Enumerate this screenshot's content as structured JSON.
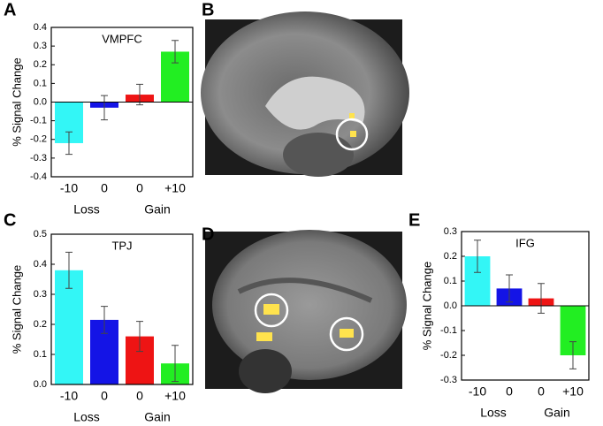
{
  "panel_labels": [
    "A",
    "B",
    "C",
    "D",
    "E"
  ],
  "chart_data": [
    {
      "type": "bar",
      "title": "VMPFC",
      "ylabel": "% Signal Change",
      "categories": [
        "-10",
        "0",
        "0",
        "+10"
      ],
      "category_groups": [
        "Loss",
        "Gain"
      ],
      "values": [
        -0.22,
        -0.03,
        0.04,
        0.27
      ],
      "errors": [
        0.06,
        0.065,
        0.055,
        0.06
      ],
      "colors": [
        "#33f6f6",
        "#1414e6",
        "#ee1414",
        "#22ee22"
      ],
      "ylim": [
        -0.4,
        0.4
      ],
      "yticks": [
        -0.4,
        -0.3,
        -0.2,
        -0.1,
        {
          "value": 0,
          "label": "0.0"
        },
        0.1,
        0.2,
        0.3,
        0.4
      ]
    },
    {
      "type": "bar",
      "title": "TPJ",
      "ylabel": "% Signal Change",
      "categories": [
        "-10",
        "0",
        "0",
        "+10"
      ],
      "category_groups": [
        "Loss",
        "Gain"
      ],
      "values": [
        0.38,
        0.215,
        0.16,
        0.07
      ],
      "errors": [
        0.06,
        0.045,
        0.05,
        0.06
      ],
      "colors": [
        "#33f6f6",
        "#1414e6",
        "#ee1414",
        "#22ee22"
      ],
      "ylim": [
        0,
        0.5
      ],
      "yticks": [
        {
          "value": 0,
          "label": "0.0"
        },
        0.1,
        0.2,
        0.3,
        0.4,
        0.5
      ]
    },
    {
      "type": "bar",
      "title": "IFG",
      "ylabel": "% Signal Change",
      "categories": [
        "-10",
        "0",
        "0",
        "+10"
      ],
      "category_groups": [
        "Loss",
        "Gain"
      ],
      "values": [
        0.2,
        0.07,
        0.03,
        -0.2
      ],
      "errors": [
        0.065,
        0.055,
        0.06,
        0.055
      ],
      "colors": [
        "#33f6f6",
        "#1414e6",
        "#ee1414",
        "#22ee22"
      ],
      "ylim": [
        -0.3,
        0.3
      ],
      "yticks": [
        -0.3,
        -0.2,
        -0.1,
        {
          "value": 0,
          "label": "0.0"
        },
        0.1,
        0.2,
        0.3
      ]
    }
  ]
}
